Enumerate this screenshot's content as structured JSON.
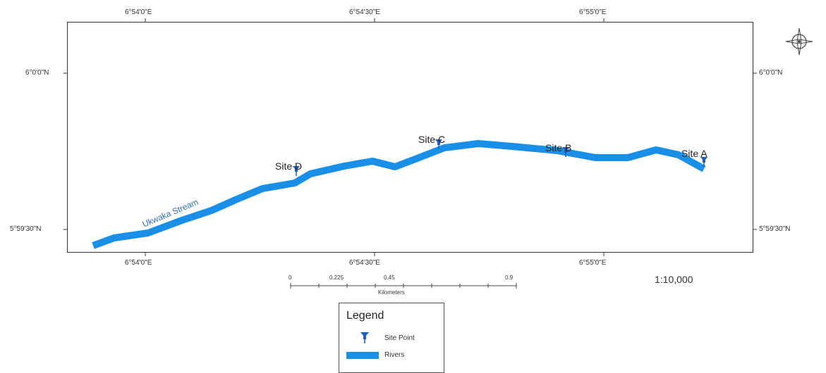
{
  "map": {
    "ticks_top": [
      "6°54'0\"E",
      "6°54'30\"E",
      "6°55'0\"E"
    ],
    "ticks_bottom": [
      "6°54'0\"E",
      "6°54'30\"E",
      "6°55'0\"E"
    ],
    "ticks_left": [
      "6°0'0\"N",
      "5°59'30\"N"
    ],
    "ticks_right": [
      "6°0'0\"N",
      "5°59'30\"N"
    ],
    "stream_label": "Ukwaka Stream",
    "sites": [
      {
        "label": "Site A"
      },
      {
        "label": "Site B"
      },
      {
        "label": "Site C"
      },
      {
        "label": "Site D"
      }
    ],
    "colors": {
      "river": "#1a8fe8",
      "site": "#1f5fbf",
      "stream_label": "#2f6fbf"
    }
  },
  "scale_bar": {
    "labels": [
      "0",
      "0.225",
      "0.45",
      "0.9"
    ],
    "unit": "Kilometers",
    "ratio": "1:10,000"
  },
  "legend": {
    "title": "Legend",
    "items": [
      {
        "label": "Site Point",
        "icon": "site-pin-icon"
      },
      {
        "label": "Rivers",
        "icon": "river-swatch-icon"
      }
    ]
  },
  "north_arrow": {
    "icon": "compass-rose-icon"
  }
}
